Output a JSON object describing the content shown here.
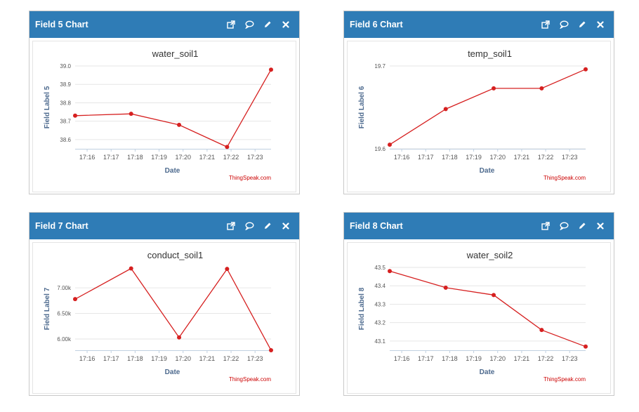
{
  "panels": [
    {
      "title": "Field 5 Chart"
    },
    {
      "title": "Field 6 Chart"
    },
    {
      "title": "Field 7 Chart"
    },
    {
      "title": "Field 8 Chart"
    }
  ],
  "header_icons": [
    "external-link-icon",
    "comment-icon",
    "pencil-icon",
    "close-icon"
  ],
  "colors": {
    "header": "#2f7cb6",
    "series": "#d62020",
    "axis_title": "#4d6a8e",
    "credit": "#cc0000"
  },
  "chart_data": [
    {
      "type": "line",
      "title": "water_soil1",
      "xlabel": "Date",
      "ylabel": "Field Label 5",
      "credit": "ThingSpeak.com",
      "xticks": [
        "17:16",
        "17:17",
        "17:18",
        "17:19",
        "17:20",
        "17:21",
        "17:22",
        "17:23"
      ],
      "xlim": [
        "17:15:30",
        "17:23:40"
      ],
      "x": [
        "17:15:30",
        "17:17:50",
        "17:19:50",
        "17:21:50",
        "17:23:40"
      ],
      "y": [
        38.73,
        38.74,
        38.68,
        38.56,
        38.98
      ],
      "yticks": [
        "39.0",
        "38.9",
        "38.8",
        "38.7",
        "38.6"
      ],
      "ylim": [
        38.55,
        39.0
      ],
      "grid": true
    },
    {
      "type": "line",
      "title": "temp_soil1",
      "xlabel": "Date",
      "ylabel": "Field Label 6",
      "credit": "ThingSpeak.com",
      "xticks": [
        "17:16",
        "17:17",
        "17:18",
        "17:19",
        "17:20",
        "17:21",
        "17:22",
        "17:23"
      ],
      "xlim": [
        "17:15:30",
        "17:23:40"
      ],
      "x": [
        "17:15:30",
        "17:17:50",
        "17:19:50",
        "17:21:50",
        "17:23:40"
      ],
      "y": [
        19.605,
        19.648,
        19.673,
        19.673,
        19.696
      ],
      "yticks": [
        "19.7",
        "19.6"
      ],
      "ylim": [
        19.6,
        19.7
      ],
      "grid": true
    },
    {
      "type": "line",
      "title": "conduct_soil1",
      "xlabel": "Date",
      "ylabel": "Field Label 7",
      "credit": "ThingSpeak.com",
      "xticks": [
        "17:16",
        "17:17",
        "17:18",
        "17:19",
        "17:20",
        "17:21",
        "17:22",
        "17:23"
      ],
      "xlim": [
        "17:15:30",
        "17:23:40"
      ],
      "x": [
        "17:15:30",
        "17:17:50",
        "17:19:50",
        "17:21:50",
        "17:23:40"
      ],
      "y": [
        6780,
        7380,
        6030,
        7370,
        5780
      ],
      "yticks": [
        "7.00k",
        "6.50k",
        "6.00k"
      ],
      "ylim": [
        5780,
        7400
      ],
      "grid": true
    },
    {
      "type": "line",
      "title": "water_soil2",
      "xlabel": "Date",
      "ylabel": "Field Label 8",
      "credit": "ThingSpeak.com",
      "xticks": [
        "17:16",
        "17:17",
        "17:18",
        "17:19",
        "17:20",
        "17:21",
        "17:22",
        "17:23"
      ],
      "xlim": [
        "17:15:30",
        "17:23:40"
      ],
      "x": [
        "17:15:30",
        "17:17:50",
        "17:19:50",
        "17:21:50",
        "17:23:40"
      ],
      "y": [
        43.48,
        43.39,
        43.35,
        43.16,
        43.07
      ],
      "yticks": [
        "43.5",
        "43.4",
        "43.3",
        "43.2",
        "43.1"
      ],
      "ylim": [
        43.05,
        43.5
      ],
      "grid": true
    }
  ]
}
